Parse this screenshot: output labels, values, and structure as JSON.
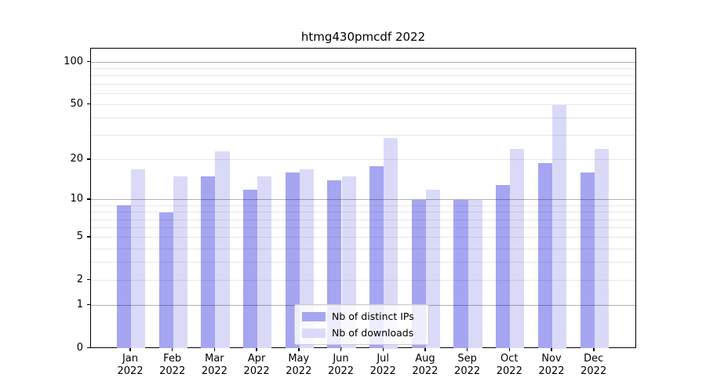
{
  "chart_data": {
    "type": "bar",
    "title": "htmg430pmcdf 2022",
    "categories": [
      "Jan 2022",
      "Feb 2022",
      "Mar 2022",
      "Apr 2022",
      "May 2022",
      "Jun 2022",
      "Jul 2022",
      "Aug 2022",
      "Sep 2022",
      "Oct 2022",
      "Nov 2022",
      "Dec 2022"
    ],
    "x_tick_months": [
      "Jan",
      "Feb",
      "Mar",
      "Apr",
      "May",
      "Jun",
      "Jul",
      "Aug",
      "Sep",
      "Oct",
      "Nov",
      "Dec"
    ],
    "x_tick_year": "2022",
    "series": [
      {
        "name": "Nb of distinct IPs",
        "color": "#a5a5f2",
        "values": [
          9,
          8,
          15,
          12,
          16,
          14,
          18,
          10,
          10,
          13,
          19,
          16
        ]
      },
      {
        "name": "Nb of downloads",
        "color": "#dadaf8",
        "values": [
          17,
          15,
          23,
          15,
          17,
          15,
          29,
          12,
          10,
          24,
          50,
          24
        ]
      }
    ],
    "xlabel": "",
    "ylabel": "",
    "yscale": "log10(1+x)",
    "ylim": [
      0,
      125
    ],
    "y_ticks": [
      0,
      1,
      2,
      5,
      10,
      20,
      50,
      100
    ],
    "grid": "on",
    "grid_major_at": [
      1,
      10,
      100
    ],
    "grid_minor_at": [
      2,
      3,
      4,
      5,
      6,
      7,
      8,
      9,
      20,
      30,
      40,
      50,
      60,
      70,
      80,
      90
    ],
    "legend_position": "lower center"
  },
  "colors": {
    "background": "#ffffff",
    "spine": "#000000",
    "grid_major": "#b3b3b3",
    "grid_minor": "#e8e8e8",
    "legend_border": "#cccccc"
  }
}
